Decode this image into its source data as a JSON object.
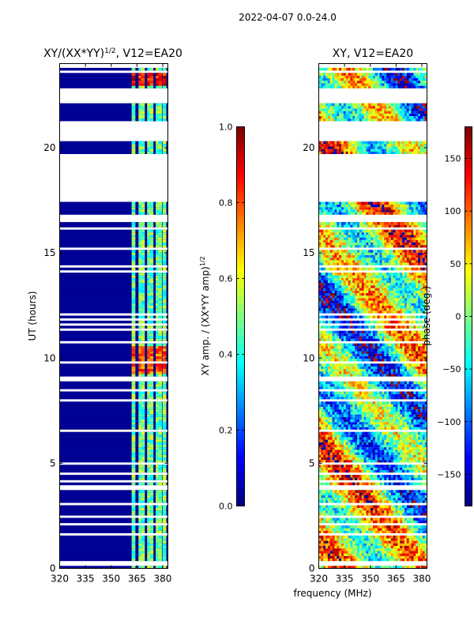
{
  "suptitle": "2022-04-07 0.0-24.0",
  "xlabel": "frequency (MHz)",
  "colors": {
    "frame": "#000000",
    "missing_row": "#ffffff",
    "background": "#ffffff"
  },
  "chart_data": [
    {
      "type": "heatmap",
      "title": "XY/(XX*YY)",
      "title_sup": "1/2",
      "title_suffix": ", V12=EA20",
      "xlabel": "",
      "ylabel": "UT (hours)",
      "xlim": [
        320,
        383
      ],
      "ylim": [
        0,
        24
      ],
      "xticks": [
        320,
        335,
        350,
        365,
        380
      ],
      "yticks": [
        0,
        5,
        10,
        15,
        20
      ],
      "colormap": "jet",
      "colorbar": {
        "label": "XY amp. / (XX*YY amp)",
        "label_sup": "1/2",
        "range": [
          0.0,
          1.0
        ],
        "ticks": [
          0.0,
          0.2,
          0.4,
          0.6,
          0.8,
          1.0
        ],
        "tick_labels": [
          "0.0",
          "0.2",
          "0.4",
          "0.6",
          "0.8",
          "1.0"
        ]
      },
      "data_gaps_ut": [
        [
          17.4,
          19.6
        ],
        [
          20.3,
          21.3
        ],
        [
          22.1,
          22.7
        ],
        [
          23.8,
          24.0
        ]
      ],
      "bright_channels_mhz": [
        363,
        367,
        368.5,
        372,
        373.5,
        377,
        378.5,
        381
      ],
      "strong_regions": [
        {
          "ut": [
            23.0,
            23.7
          ],
          "freq": [
            363,
            382
          ],
          "value": 0.95
        },
        {
          "ut": [
            9.3,
            10.6
          ],
          "freq": [
            363,
            382
          ],
          "value": 0.85
        }
      ],
      "baseline_value": 0.02
    },
    {
      "type": "heatmap",
      "title": "XY, V12=EA20",
      "xlabel": "",
      "ylabel": "",
      "xlim": [
        320,
        383
      ],
      "ylim": [
        0,
        24
      ],
      "xticks": [
        320,
        335,
        350,
        365,
        380
      ],
      "yticks": [
        0,
        5,
        10,
        15,
        20
      ],
      "colormap": "jet",
      "colorbar": {
        "label": "phase (deg.)",
        "range": [
          -180,
          180
        ],
        "ticks": [
          -150,
          -100,
          -50,
          0,
          50,
          100,
          150
        ],
        "tick_labels": [
          "−150",
          "−100",
          "−50",
          "0",
          "50",
          "100",
          "150"
        ]
      },
      "data_gaps_ut": [
        [
          17.4,
          19.6
        ],
        [
          20.3,
          21.3
        ],
        [
          22.1,
          22.7
        ],
        [
          23.8,
          24.0
        ]
      ]
    }
  ]
}
